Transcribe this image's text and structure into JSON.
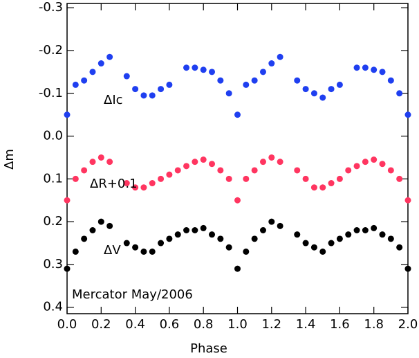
{
  "chart_data": {
    "type": "scatter",
    "xlabel": "Phase",
    "ylabel": "Δm",
    "annotation": "Mercator May/2006",
    "xlim": [
      0,
      2.0
    ],
    "ylim": [
      -0.31,
      0.415
    ],
    "y_inverted": true,
    "xticks": [
      {
        "value": 0,
        "label": "0.0"
      },
      0.2,
      0.4,
      0.6,
      0.8,
      {
        "value": 1,
        "label": "1.0"
      },
      1.2,
      1.4,
      1.6,
      1.8,
      {
        "value": 2,
        "label": "2.0"
      }
    ],
    "yticks": [
      -0.3,
      -0.2,
      -0.1,
      {
        "value": 0,
        "label": "0.0"
      },
      0.1,
      0.2,
      0.3,
      0.4
    ],
    "x": [
      0,
      0.05,
      0.1,
      0.15,
      0.2,
      0.25,
      0.3,
      0.35,
      0.4,
      0.45,
      0.5,
      0.55,
      0.6,
      0.65,
      0.7,
      0.75,
      0.8,
      0.85,
      0.9,
      0.95,
      1.0,
      1.05,
      1.1,
      1.15,
      1.2,
      1.25,
      1.3,
      1.35,
      1.4,
      1.45,
      1.5,
      1.55,
      1.6,
      1.65,
      1.7,
      1.75,
      1.8,
      1.85,
      1.9,
      1.95,
      2.0
    ],
    "series": [
      {
        "name": "ΔIc",
        "color": "#1f3ff0",
        "values": [
          -0.05,
          -0.12,
          -0.13,
          -0.15,
          -0.17,
          -0.185,
          null,
          -0.14,
          -0.11,
          -0.095,
          -0.095,
          -0.11,
          -0.12,
          null,
          -0.16,
          -0.16,
          -0.155,
          -0.15,
          -0.13,
          -0.1,
          -0.05,
          -0.12,
          -0.13,
          -0.15,
          -0.17,
          -0.185,
          null,
          -0.13,
          -0.11,
          -0.1,
          -0.09,
          -0.11,
          -0.12,
          null,
          -0.16,
          -0.16,
          -0.155,
          -0.15,
          -0.13,
          -0.1,
          -0.05
        ]
      },
      {
        "name": "ΔR+0.1",
        "color": "#ff3560",
        "values": [
          0.15,
          0.1,
          0.08,
          0.06,
          0.05,
          0.06,
          null,
          0.11,
          0.12,
          0.12,
          0.11,
          0.1,
          0.09,
          0.08,
          0.07,
          0.06,
          0.055,
          0.065,
          0.08,
          0.1,
          0.15,
          0.1,
          0.08,
          0.06,
          0.05,
          0.06,
          null,
          0.08,
          0.1,
          0.12,
          0.12,
          0.11,
          0.1,
          0.08,
          0.07,
          0.06,
          0.055,
          0.065,
          0.08,
          0.1,
          0.15
        ]
      },
      {
        "name": "ΔV",
        "color": "#000000",
        "values": [
          0.31,
          0.27,
          0.24,
          0.22,
          0.2,
          0.21,
          null,
          0.25,
          0.26,
          0.27,
          0.27,
          0.25,
          0.24,
          0.23,
          0.22,
          0.22,
          0.215,
          0.23,
          0.24,
          0.26,
          0.31,
          0.27,
          0.24,
          0.22,
          0.2,
          0.21,
          null,
          0.23,
          0.25,
          0.26,
          0.27,
          0.25,
          0.24,
          0.23,
          0.22,
          0.22,
          0.215,
          0.23,
          0.24,
          0.26,
          0.31
        ]
      }
    ]
  }
}
